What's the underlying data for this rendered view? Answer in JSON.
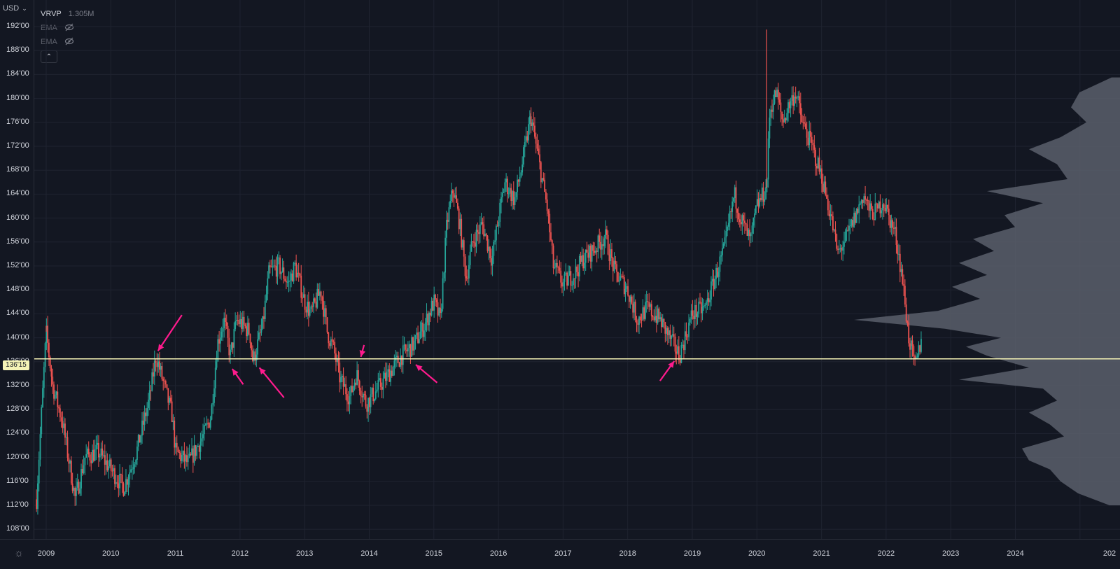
{
  "toolbar": {
    "currency": "USD"
  },
  "legend": {
    "volume_profile": {
      "name": "VRVP",
      "value": "1.305M"
    },
    "indicators": [
      {
        "name": "EMA"
      },
      {
        "name": "EMA"
      }
    ]
  },
  "current_price_label": "136'15",
  "icons": {
    "settings": "gear-icon",
    "visibility": "eye-slash-icon",
    "collapse": "chevron-up-icon"
  },
  "colors": {
    "up": "#26a69a",
    "down": "#ef5350",
    "level": "#f5f3b6",
    "arrow": "#ff1b8d",
    "profile": "#5b5f6b",
    "grid": "#1f2330"
  },
  "chart_data": {
    "type": "candlestick",
    "y_ticks": [
      "192'00",
      "188'00",
      "184'00",
      "180'00",
      "176'00",
      "172'00",
      "168'00",
      "164'00",
      "160'00",
      "156'00",
      "152'00",
      "148'00",
      "144'00",
      "140'00",
      "136'00",
      "132'00",
      "128'00",
      "124'00",
      "120'00",
      "116'00",
      "112'00",
      "108'00"
    ],
    "x_ticks": [
      "2009",
      "2010",
      "2011",
      "2012",
      "2013",
      "2014",
      "2015",
      "2016",
      "2017",
      "2018",
      "2019",
      "2020",
      "2021",
      "2022",
      "2023",
      "2024",
      "202"
    ],
    "ylim": [
      107,
      194
    ],
    "horizontal_level": 136.47,
    "price_path": [
      [
        2008.85,
        113
      ],
      [
        2009.0,
        141
      ],
      [
        2009.1,
        132
      ],
      [
        2009.25,
        126
      ],
      [
        2009.45,
        113
      ],
      [
        2009.6,
        120
      ],
      [
        2009.8,
        121
      ],
      [
        2010.0,
        118
      ],
      [
        2010.2,
        115
      ],
      [
        2010.4,
        121
      ],
      [
        2010.6,
        130
      ],
      [
        2010.7,
        137
      ],
      [
        2010.85,
        131
      ],
      [
        2010.95,
        127
      ],
      [
        2011.0,
        121
      ],
      [
        2011.2,
        119
      ],
      [
        2011.45,
        124
      ],
      [
        2011.55,
        127
      ],
      [
        2011.65,
        139
      ],
      [
        2011.75,
        143
      ],
      [
        2011.85,
        137
      ],
      [
        2011.95,
        143
      ],
      [
        2012.15,
        141
      ],
      [
        2012.2,
        136
      ],
      [
        2012.35,
        142
      ],
      [
        2012.45,
        151
      ],
      [
        2012.6,
        152
      ],
      [
        2012.75,
        149
      ],
      [
        2012.85,
        152
      ],
      [
        2013.0,
        146
      ],
      [
        2013.1,
        144
      ],
      [
        2013.25,
        148
      ],
      [
        2013.35,
        141
      ],
      [
        2013.45,
        138
      ],
      [
        2013.55,
        133
      ],
      [
        2013.7,
        130
      ],
      [
        2013.8,
        134
      ],
      [
        2013.95,
        129
      ],
      [
        2014.1,
        131
      ],
      [
        2014.3,
        134
      ],
      [
        2014.5,
        137
      ],
      [
        2014.7,
        139
      ],
      [
        2014.85,
        142
      ],
      [
        2015.0,
        146
      ],
      [
        2015.1,
        143
      ],
      [
        2015.2,
        159
      ],
      [
        2015.3,
        165
      ],
      [
        2015.4,
        159
      ],
      [
        2015.5,
        150
      ],
      [
        2015.6,
        156
      ],
      [
        2015.75,
        159
      ],
      [
        2015.9,
        153
      ],
      [
        2016.0,
        160
      ],
      [
        2016.1,
        166
      ],
      [
        2016.25,
        163
      ],
      [
        2016.35,
        168
      ],
      [
        2016.5,
        177
      ],
      [
        2016.6,
        171
      ],
      [
        2016.75,
        162
      ],
      [
        2016.85,
        152
      ],
      [
        2017.0,
        149
      ],
      [
        2017.2,
        151
      ],
      [
        2017.3,
        153
      ],
      [
        2017.5,
        155
      ],
      [
        2017.65,
        157
      ],
      [
        2017.8,
        151
      ],
      [
        2018.0,
        148
      ],
      [
        2018.15,
        143
      ],
      [
        2018.3,
        145
      ],
      [
        2018.5,
        143
      ],
      [
        2018.65,
        140
      ],
      [
        2018.8,
        137
      ],
      [
        2019.0,
        144
      ],
      [
        2019.2,
        145
      ],
      [
        2019.35,
        150
      ],
      [
        2019.5,
        155
      ],
      [
        2019.65,
        164
      ],
      [
        2019.75,
        160
      ],
      [
        2019.9,
        156
      ],
      [
        2020.0,
        162
      ],
      [
        2020.15,
        165
      ],
      [
        2020.2,
        178
      ],
      [
        2020.3,
        181
      ],
      [
        2020.4,
        176
      ],
      [
        2020.5,
        179
      ],
      [
        2020.6,
        181
      ],
      [
        2020.7,
        176
      ],
      [
        2020.85,
        172
      ],
      [
        2021.0,
        167
      ],
      [
        2021.15,
        160
      ],
      [
        2021.25,
        154
      ],
      [
        2021.4,
        157
      ],
      [
        2021.55,
        161
      ],
      [
        2021.65,
        164
      ],
      [
        2021.75,
        161
      ],
      [
        2021.85,
        161
      ],
      [
        2021.95,
        163
      ],
      [
        2022.05,
        160
      ],
      [
        2022.15,
        157
      ],
      [
        2022.25,
        150
      ],
      [
        2022.35,
        140
      ],
      [
        2022.45,
        135
      ],
      [
        2022.55,
        140
      ]
    ],
    "spikes": [
      {
        "x": 2020.15,
        "high": 191.5
      },
      {
        "x": 2009.0,
        "high": 142
      },
      {
        "x": 2016.5,
        "high": 177.5
      }
    ],
    "arrows": [
      {
        "tip": [
          2010.73,
          137.8
        ],
        "tail": [
          2011.1,
          143.8
        ]
      },
      {
        "tip": [
          2011.88,
          134.8
        ],
        "tail": [
          2012.05,
          132.2
        ]
      },
      {
        "tip": [
          2012.3,
          135.0
        ],
        "tail": [
          2012.68,
          130.0
        ]
      },
      {
        "tip": [
          2013.87,
          136.8
        ],
        "tail": [
          2013.92,
          138.8
        ]
      },
      {
        "tip": [
          2014.72,
          135.5
        ],
        "tail": [
          2015.05,
          132.5
        ]
      },
      {
        "tip": [
          2018.72,
          136.1
        ],
        "tail": [
          2018.5,
          132.8
        ]
      }
    ],
    "volume_profile": {
      "value": "1.305M",
      "points": [
        [
          183.5,
          12
        ],
        [
          181,
          58
        ],
        [
          178.5,
          70
        ],
        [
          176,
          48
        ],
        [
          173.5,
          85
        ],
        [
          171.5,
          130
        ],
        [
          169,
          90
        ],
        [
          166.5,
          75
        ],
        [
          164.5,
          190
        ],
        [
          162.5,
          110
        ],
        [
          160.5,
          165
        ],
        [
          158.5,
          150
        ],
        [
          156.5,
          210
        ],
        [
          154.5,
          180
        ],
        [
          152.5,
          230
        ],
        [
          150.5,
          190
        ],
        [
          148.5,
          240
        ],
        [
          146.5,
          200
        ],
        [
          144.5,
          260
        ],
        [
          143,
          380
        ],
        [
          141.5,
          250
        ],
        [
          140,
          170
        ],
        [
          138.5,
          220
        ],
        [
          137,
          190
        ],
        [
          135,
          130
        ],
        [
          133,
          230
        ],
        [
          131.5,
          110
        ],
        [
          129.5,
          90
        ],
        [
          127.5,
          130
        ],
        [
          125.5,
          100
        ],
        [
          123.5,
          80
        ],
        [
          121.5,
          140
        ],
        [
          119.5,
          130
        ],
        [
          118,
          100
        ],
        [
          116,
          85
        ],
        [
          114,
          60
        ],
        [
          112,
          15
        ]
      ]
    }
  }
}
